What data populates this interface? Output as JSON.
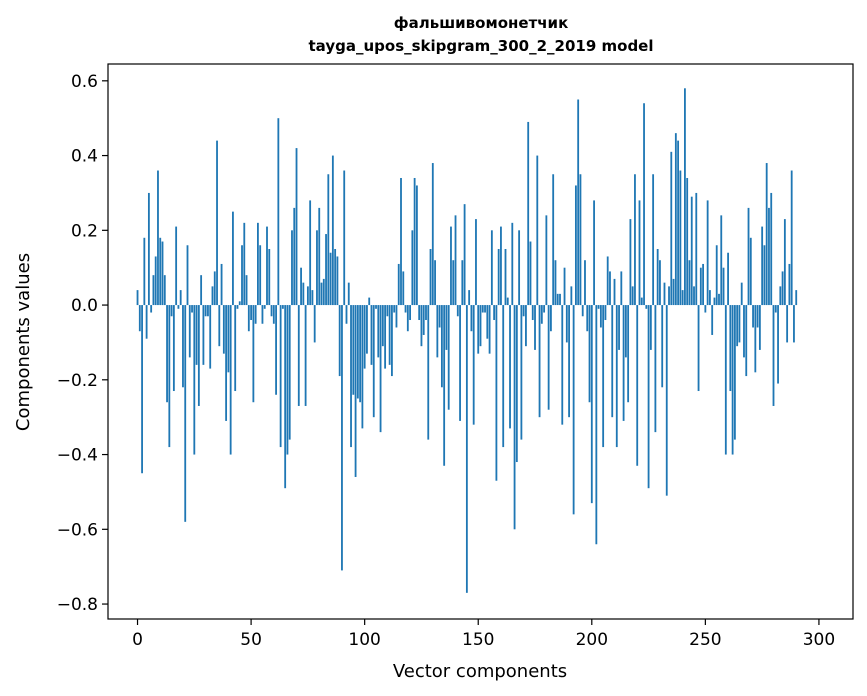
{
  "chart_data": {
    "type": "bar",
    "title": "фальшивомонетчик",
    "subtitle": "tayga_upos_skipgram_300_2_2019 model",
    "xlabel": "Vector components",
    "ylabel": "Components values",
    "xlim": [
      -13,
      315
    ],
    "ylim": [
      -0.84,
      0.645
    ],
    "xticks": [
      0,
      50,
      100,
      150,
      200,
      250,
      300
    ],
    "xtick_labels": [
      "0",
      "50",
      "100",
      "150",
      "200",
      "250",
      "300"
    ],
    "yticks": [
      -0.8,
      -0.6,
      -0.4,
      -0.2,
      0.0,
      0.2,
      0.4,
      0.6
    ],
    "ytick_labels": [
      "−0.8",
      "−0.6",
      "−0.4",
      "−0.2",
      "0.0",
      "0.2",
      "0.4",
      "0.6"
    ],
    "bar_color": "#1f77b4",
    "grid": false,
    "values": [
      0.04,
      -0.07,
      -0.45,
      0.18,
      -0.09,
      0.3,
      -0.02,
      0.08,
      0.13,
      0.36,
      0.18,
      0.17,
      0.08,
      -0.26,
      -0.38,
      -0.03,
      -0.23,
      0.21,
      -0.01,
      0.04,
      -0.22,
      -0.58,
      0.16,
      -0.14,
      -0.02,
      -0.4,
      -0.16,
      -0.27,
      0.08,
      -0.16,
      -0.03,
      -0.03,
      -0.17,
      0.05,
      0.09,
      0.44,
      -0.11,
      0.11,
      -0.13,
      -0.31,
      -0.18,
      -0.4,
      0.25,
      -0.23,
      -0.01,
      0.01,
      0.16,
      0.22,
      0.08,
      -0.07,
      -0.04,
      -0.26,
      -0.05,
      0.22,
      0.16,
      -0.05,
      -0.01,
      0.21,
      0.15,
      -0.03,
      -0.05,
      -0.24,
      0.5,
      -0.38,
      -0.01,
      -0.49,
      -0.4,
      -0.36,
      0.2,
      0.26,
      0.42,
      -0.27,
      0.1,
      0.06,
      -0.27,
      0.05,
      0.28,
      0.04,
      -0.1,
      0.2,
      0.26,
      0.06,
      0.07,
      0.19,
      0.35,
      0.14,
      0.4,
      0.15,
      0.13,
      -0.19,
      -0.71,
      0.36,
      -0.05,
      0.06,
      -0.38,
      -0.24,
      -0.46,
      -0.25,
      -0.26,
      -0.33,
      -0.17,
      -0.13,
      0.02,
      -0.16,
      -0.3,
      -0.01,
      -0.14,
      -0.34,
      -0.11,
      -0.17,
      -0.03,
      -0.16,
      -0.19,
      -0.02,
      -0.06,
      0.11,
      0.34,
      0.09,
      -0.02,
      -0.07,
      -0.04,
      0.2,
      0.34,
      0.32,
      -0.04,
      -0.11,
      -0.08,
      -0.04,
      -0.36,
      0.15,
      0.38,
      0.12,
      -0.14,
      -0.06,
      -0.22,
      -0.43,
      -0.12,
      -0.28,
      0.21,
      0.12,
      0.24,
      -0.03,
      -0.31,
      0.12,
      0.27,
      -0.77,
      0.04,
      -0.07,
      -0.32,
      0.23,
      -0.13,
      -0.11,
      -0.02,
      -0.02,
      -0.09,
      -0.13,
      0.2,
      -0.04,
      -0.47,
      0.15,
      0.21,
      -0.38,
      0.15,
      0.02,
      -0.33,
      0.22,
      -0.6,
      -0.42,
      0.2,
      -0.36,
      -0.03,
      -0.11,
      0.49,
      0.17,
      -0.04,
      -0.12,
      0.4,
      -0.3,
      -0.05,
      -0.02,
      0.24,
      -0.28,
      -0.07,
      0.35,
      0.12,
      0.03,
      0.03,
      -0.32,
      0.1,
      -0.1,
      -0.3,
      0.05,
      -0.56,
      0.32,
      0.55,
      0.35,
      -0.03,
      0.12,
      -0.07,
      -0.26,
      -0.53,
      0.28,
      -0.64,
      -0.01,
      -0.06,
      -0.38,
      -0.04,
      0.13,
      0.09,
      -0.3,
      0.07,
      -0.38,
      -0.12,
      0.09,
      -0.31,
      -0.14,
      -0.26,
      0.23,
      0.05,
      0.35,
      -0.43,
      0.28,
      0.02,
      0.54,
      -0.01,
      -0.49,
      -0.12,
      0.35,
      -0.34,
      0.15,
      0.12,
      -0.22,
      0.06,
      -0.51,
      0.05,
      0.41,
      0.07,
      0.46,
      0.44,
      0.36,
      0.04,
      0.58,
      0.34,
      0.12,
      0.29,
      0.05,
      0.3,
      -0.23,
      0.1,
      0.11,
      -0.02,
      0.28,
      0.04,
      -0.08,
      0.02,
      0.16,
      0.03,
      0.24,
      0.1,
      -0.4,
      0.14,
      -0.23,
      -0.4,
      -0.36,
      -0.11,
      -0.1,
      0.06,
      -0.14,
      -0.19,
      0.26,
      0.18,
      -0.06,
      -0.18,
      -0.06,
      -0.12,
      0.21,
      0.16,
      0.38,
      0.26,
      0.3,
      -0.27,
      -0.02,
      -0.21,
      0.05,
      0.09,
      0.23,
      -0.1,
      0.11,
      0.36,
      -0.1,
      0.04
    ]
  }
}
